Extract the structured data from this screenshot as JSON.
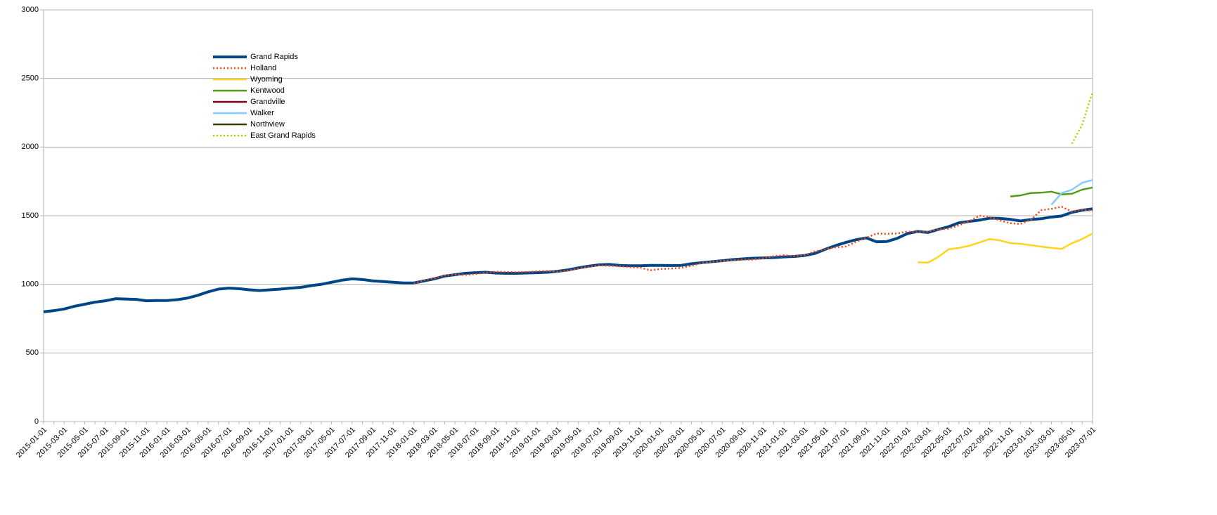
{
  "chart_data": {
    "type": "line",
    "categories": [
      "2015-01-01",
      null,
      "2015-03-01",
      null,
      "2015-05-01",
      null,
      "2015-07-01",
      null,
      "2015-09-01",
      null,
      "2015-11-01",
      null,
      "2016-01-01",
      null,
      "2016-03-01",
      null,
      "2016-05-01",
      null,
      "2016-07-01",
      null,
      "2016-09-01",
      null,
      "2016-11-01",
      null,
      "2017-01-01",
      null,
      "2017-03-01",
      null,
      "2017-05-01",
      null,
      "2017-07-01",
      null,
      "2017-09-01",
      null,
      "2017-11-01",
      null,
      "2018-01-01",
      null,
      "2018-03-01",
      null,
      "2018-05-01",
      null,
      "2018-07-01",
      null,
      "2018-09-01",
      null,
      "2018-11-01",
      null,
      "2019-01-01",
      null,
      "2019-03-01",
      null,
      "2019-05-01",
      null,
      "2019-07-01",
      null,
      "2019-09-01",
      null,
      "2019-11-01",
      null,
      "2020-01-01",
      null,
      "2020-03-01",
      null,
      "2020-05-01",
      null,
      "2020-07-01",
      null,
      "2020-09-01",
      null,
      "2020-11-01",
      null,
      "2021-01-01",
      null,
      "2021-03-01",
      null,
      "2021-05-01",
      null,
      "2021-07-01",
      null,
      "2021-09-01",
      null,
      "2021-11-01",
      null,
      "2022-01-01",
      null,
      "2022-03-01",
      null,
      "2022-05-01",
      null,
      "2022-07-01",
      null,
      "2022-09-01",
      null,
      "2022-11-01",
      null,
      "2023-01-01",
      null,
      "2023-03-01",
      null,
      "2023-05-01",
      null,
      "2023-07-01"
    ],
    "series": [
      {
        "name": "Grand Rapids",
        "color": "#004586",
        "line_style": "solid",
        "values": [
          800,
          808,
          820,
          840,
          855,
          870,
          880,
          895,
          893,
          890,
          880,
          882,
          882,
          888,
          900,
          920,
          945,
          965,
          972,
          968,
          960,
          955,
          960,
          965,
          972,
          978,
          990,
          1000,
          1015,
          1030,
          1040,
          1035,
          1025,
          1020,
          1015,
          1010,
          1010,
          1025,
          1040,
          1060,
          1070,
          1080,
          1085,
          1088,
          1082,
          1080,
          1080,
          1083,
          1085,
          1088,
          1095,
          1105,
          1120,
          1132,
          1142,
          1145,
          1138,
          1135,
          1135,
          1138,
          1138,
          1137,
          1138,
          1150,
          1158,
          1165,
          1172,
          1180,
          1185,
          1190,
          1192,
          1195,
          1200,
          1203,
          1210,
          1225,
          1255,
          1282,
          1305,
          1325,
          1338,
          1310,
          1312,
          1335,
          1370,
          1385,
          1378,
          1400,
          1420,
          1448,
          1458,
          1468,
          1482,
          1480,
          1473,
          1462,
          1472,
          1478,
          1490,
          1498,
          1525,
          1540,
          1550
        ]
      },
      {
        "name": "Holland",
        "color": "#ff420e",
        "line_style": "dotted",
        "values": [
          null,
          null,
          null,
          null,
          null,
          null,
          null,
          null,
          null,
          null,
          null,
          null,
          null,
          null,
          null,
          null,
          null,
          null,
          null,
          null,
          null,
          null,
          null,
          null,
          null,
          null,
          null,
          null,
          null,
          null,
          null,
          null,
          null,
          null,
          null,
          null,
          1005,
          1030,
          1045,
          1065,
          1072,
          1068,
          1075,
          1085,
          1092,
          1090,
          1088,
          1090,
          1095,
          1098,
          1092,
          1100,
          1115,
          1128,
          1138,
          1135,
          1132,
          1125,
          1122,
          1102,
          1112,
          1115,
          1120,
          1135,
          1155,
          1165,
          1170,
          1175,
          1180,
          1180,
          1190,
          1205,
          1212,
          1205,
          1212,
          1240,
          1255,
          1270,
          1275,
          1310,
          1340,
          1370,
          1368,
          1370,
          1385,
          1378,
          1385,
          1400,
          1405,
          1430,
          1460,
          1500,
          1490,
          1465,
          1445,
          1440,
          1470,
          1540,
          1550,
          1565,
          1530,
          1545,
          1535
        ]
      },
      {
        "name": "Wyoming",
        "color": "#ffd320",
        "line_style": "solid",
        "values": [
          null,
          null,
          null,
          null,
          null,
          null,
          null,
          null,
          null,
          null,
          null,
          null,
          null,
          null,
          null,
          null,
          null,
          null,
          null,
          null,
          null,
          null,
          null,
          null,
          null,
          null,
          null,
          null,
          null,
          null,
          null,
          null,
          null,
          null,
          null,
          null,
          null,
          null,
          null,
          null,
          null,
          null,
          null,
          null,
          null,
          null,
          null,
          null,
          null,
          null,
          null,
          null,
          null,
          null,
          null,
          null,
          null,
          null,
          null,
          null,
          null,
          null,
          null,
          null,
          null,
          null,
          null,
          null,
          null,
          null,
          null,
          null,
          null,
          null,
          null,
          null,
          null,
          null,
          null,
          null,
          null,
          null,
          null,
          null,
          null,
          1160,
          1158,
          1200,
          1255,
          1265,
          1280,
          1305,
          1330,
          1320,
          1300,
          1295,
          1285,
          1275,
          1265,
          1258,
          1300,
          1330,
          1370
        ]
      },
      {
        "name": "Kentwood",
        "color": "#579d1c",
        "line_style": "solid",
        "values": [
          null,
          null,
          null,
          null,
          null,
          null,
          null,
          null,
          null,
          null,
          null,
          null,
          null,
          null,
          null,
          null,
          null,
          null,
          null,
          null,
          null,
          null,
          null,
          null,
          null,
          null,
          null,
          null,
          null,
          null,
          null,
          null,
          null,
          null,
          null,
          null,
          null,
          null,
          null,
          null,
          null,
          null,
          null,
          null,
          null,
          null,
          null,
          null,
          null,
          null,
          null,
          null,
          null,
          null,
          null,
          null,
          null,
          null,
          null,
          null,
          null,
          null,
          null,
          null,
          null,
          null,
          null,
          null,
          null,
          null,
          null,
          null,
          null,
          null,
          null,
          null,
          null,
          null,
          null,
          null,
          null,
          null,
          null,
          null,
          null,
          null,
          null,
          null,
          null,
          null,
          null,
          null,
          null,
          null,
          1640,
          1648,
          1665,
          1668,
          1675,
          1655,
          1660,
          1690,
          1705
        ]
      },
      {
        "name": "Grandville",
        "color": "#7e0021",
        "line_style": "solid",
        "values": [
          null,
          null,
          null,
          null,
          null,
          null,
          null,
          null,
          null,
          null,
          null,
          null,
          null,
          null,
          null,
          null,
          null,
          null,
          null,
          null,
          null,
          null,
          null,
          null,
          null,
          null,
          null,
          null,
          null,
          null,
          null,
          null,
          null,
          null,
          null,
          null,
          null,
          null,
          null,
          null,
          null,
          null,
          null,
          null,
          null,
          null,
          null,
          null,
          null,
          null,
          null,
          null,
          null,
          null,
          null,
          null,
          null,
          null,
          null,
          null,
          null,
          null,
          null,
          null,
          null,
          null,
          null,
          null,
          null,
          null,
          null,
          null,
          null,
          null,
          null,
          null,
          null,
          null,
          null,
          null,
          null,
          null,
          null,
          null,
          null,
          null,
          null,
          null,
          null,
          null,
          null,
          null,
          null,
          null,
          null,
          null,
          null,
          null,
          null,
          null,
          null,
          null,
          null
        ]
      },
      {
        "name": "Walker",
        "color": "#83caff",
        "line_style": "solid",
        "values": [
          null,
          null,
          null,
          null,
          null,
          null,
          null,
          null,
          null,
          null,
          null,
          null,
          null,
          null,
          null,
          null,
          null,
          null,
          null,
          null,
          null,
          null,
          null,
          null,
          null,
          null,
          null,
          null,
          null,
          null,
          null,
          null,
          null,
          null,
          null,
          null,
          null,
          null,
          null,
          null,
          null,
          null,
          null,
          null,
          null,
          null,
          null,
          null,
          null,
          null,
          null,
          null,
          null,
          null,
          null,
          null,
          null,
          null,
          null,
          null,
          null,
          null,
          null,
          null,
          null,
          null,
          null,
          null,
          null,
          null,
          null,
          null,
          null,
          null,
          null,
          null,
          null,
          null,
          null,
          null,
          null,
          null,
          null,
          null,
          null,
          null,
          null,
          null,
          null,
          null,
          null,
          null,
          null,
          null,
          null,
          null,
          null,
          null,
          1580,
          1665,
          1690,
          1740,
          1760
        ]
      },
      {
        "name": "Northview",
        "color": "#314004",
        "line_style": "solid",
        "values": [
          null,
          null,
          null,
          null,
          null,
          null,
          null,
          null,
          null,
          null,
          null,
          null,
          null,
          null,
          null,
          null,
          null,
          null,
          null,
          null,
          null,
          null,
          null,
          null,
          null,
          null,
          null,
          null,
          null,
          null,
          null,
          null,
          null,
          null,
          null,
          null,
          null,
          null,
          null,
          null,
          null,
          null,
          null,
          null,
          null,
          null,
          null,
          null,
          null,
          null,
          null,
          null,
          null,
          null,
          null,
          null,
          null,
          null,
          null,
          null,
          null,
          null,
          null,
          null,
          null,
          null,
          null,
          null,
          null,
          null,
          null,
          null,
          null,
          null,
          null,
          null,
          null,
          null,
          null,
          null,
          null,
          null,
          null,
          null,
          null,
          null,
          null,
          null,
          null,
          null,
          null,
          null,
          null,
          null,
          null,
          null,
          null,
          null,
          null,
          null,
          null,
          null,
          null
        ]
      },
      {
        "name": "East Grand Rapids",
        "color": "#aecf00",
        "line_style": "dotted",
        "values": [
          null,
          null,
          null,
          null,
          null,
          null,
          null,
          null,
          null,
          null,
          null,
          null,
          null,
          null,
          null,
          null,
          null,
          null,
          null,
          null,
          null,
          null,
          null,
          null,
          null,
          null,
          null,
          null,
          null,
          null,
          null,
          null,
          null,
          null,
          null,
          null,
          null,
          null,
          null,
          null,
          null,
          null,
          null,
          null,
          null,
          null,
          null,
          null,
          null,
          null,
          null,
          null,
          null,
          null,
          null,
          null,
          null,
          null,
          null,
          null,
          null,
          null,
          null,
          null,
          null,
          null,
          null,
          null,
          null,
          null,
          null,
          null,
          null,
          null,
          null,
          null,
          null,
          null,
          null,
          null,
          null,
          null,
          null,
          null,
          null,
          null,
          null,
          null,
          null,
          null,
          null,
          null,
          null,
          null,
          null,
          null,
          null,
          null,
          null,
          null,
          2025,
          2165,
          2400
        ]
      }
    ],
    "ylim": [
      0,
      3000
    ],
    "yticks": [
      0,
      500,
      1000,
      1500,
      2000,
      2500,
      3000
    ],
    "grid": true,
    "legend": "upper left"
  }
}
